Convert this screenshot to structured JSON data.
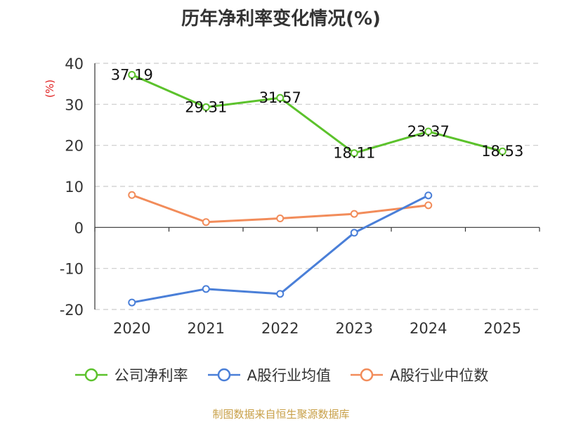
{
  "chart_data": {
    "type": "line",
    "title": "历年净利率变化情况(%)",
    "ylabel": "(%)",
    "categories": [
      "2020",
      "2021",
      "2022",
      "2023",
      "2024",
      "2025"
    ],
    "yticks": [
      "40",
      "30",
      "20",
      "10",
      "0",
      "-10",
      "-20"
    ],
    "ylim": [
      -20,
      40
    ],
    "grid": true,
    "legend_position": "bottom",
    "series": [
      {
        "name": "公司净利率",
        "color": "#5cc22c",
        "values": [
          37.19,
          29.31,
          31.57,
          18.11,
          23.37,
          18.53
        ],
        "labels": [
          "37.19",
          "29.31",
          "31.57",
          "18.11",
          "23.37",
          "18.53"
        ]
      },
      {
        "name": "A股行业均值",
        "color": "#4a7fd8",
        "values": [
          -18.3,
          -15.0,
          -16.2,
          -1.3,
          7.8,
          null
        ]
      },
      {
        "name": "A股行业中位数",
        "color": "#f28c5a",
        "values": [
          7.9,
          1.3,
          2.2,
          3.3,
          5.4,
          null
        ]
      }
    ]
  },
  "footer": {
    "source": "制图数据来自恒生聚源数据库"
  }
}
